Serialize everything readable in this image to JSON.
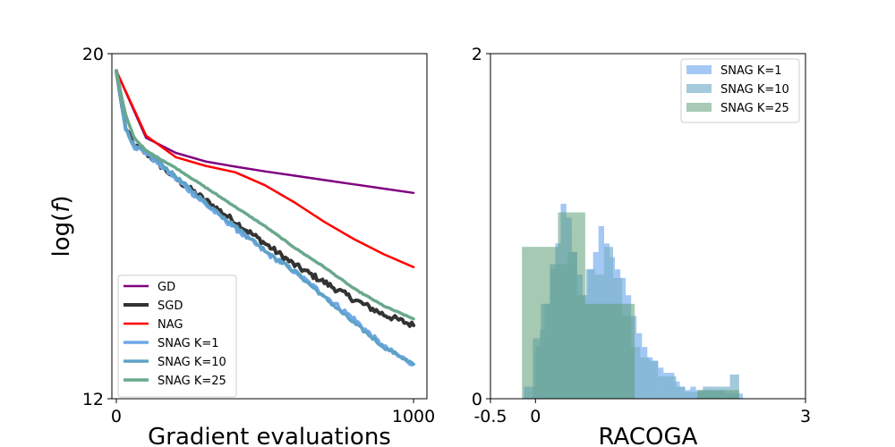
{
  "chart_data": [
    {
      "type": "line",
      "ylabel": "log(f)",
      "ylabel_prefix": "log(",
      "ylabel_var": "f",
      "ylabel_suffix": ")",
      "xlabel": "Gradient evaluations",
      "xlim": [
        -15,
        1045
      ],
      "ylim": [
        12,
        20
      ],
      "xticks": [
        {
          "value": 0,
          "label": "0"
        },
        {
          "value": 1000,
          "label": "1000"
        }
      ],
      "yticks": [
        {
          "value": 12,
          "label": "12"
        },
        {
          "value": 20,
          "label": "20"
        }
      ],
      "legend_position": "lower-left",
      "series": [
        {
          "name": "GD",
          "color": "#800080",
          "width": 2.5,
          "noise": 0,
          "points": [
            [
              0,
              19.6
            ],
            [
              100,
              18.05
            ],
            [
              200,
              17.7
            ],
            [
              300,
              17.5
            ],
            [
              400,
              17.38
            ],
            [
              500,
              17.27
            ],
            [
              600,
              17.17
            ],
            [
              700,
              17.07
            ],
            [
              800,
              16.97
            ],
            [
              900,
              16.87
            ],
            [
              1000,
              16.77
            ]
          ]
        },
        {
          "name": "SGD",
          "color": "#333333",
          "width": 4,
          "noise": 0.07,
          "points": [
            [
              0,
              19.6
            ],
            [
              30,
              18.3
            ],
            [
              60,
              17.85
            ],
            [
              100,
              17.7
            ],
            [
              150,
              17.4
            ],
            [
              200,
              17.1
            ],
            [
              250,
              16.85
            ],
            [
              300,
              16.6
            ],
            [
              400,
              16.1
            ],
            [
              500,
              15.6
            ],
            [
              600,
              15.1
            ],
            [
              700,
              14.7
            ],
            [
              800,
              14.3
            ],
            [
              900,
              13.95
            ],
            [
              1000,
              13.7
            ]
          ]
        },
        {
          "name": "NAG",
          "color": "#ff0000",
          "width": 2.5,
          "noise": 0,
          "points": [
            [
              0,
              19.6
            ],
            [
              100,
              18.1
            ],
            [
              200,
              17.6
            ],
            [
              300,
              17.4
            ],
            [
              400,
              17.25
            ],
            [
              500,
              16.95
            ],
            [
              600,
              16.55
            ],
            [
              700,
              16.1
            ],
            [
              800,
              15.7
            ],
            [
              900,
              15.35
            ],
            [
              1000,
              15.05
            ]
          ]
        },
        {
          "name": "SNAG K=1",
          "color": "#70a8e8",
          "width": 3.5,
          "noise": 0.06,
          "points": [
            [
              0,
              19.6
            ],
            [
              30,
              18.3
            ],
            [
              60,
              17.85
            ],
            [
              100,
              17.7
            ],
            [
              150,
              17.4
            ],
            [
              200,
              17.1
            ],
            [
              250,
              16.8
            ],
            [
              300,
              16.5
            ],
            [
              400,
              15.95
            ],
            [
              500,
              15.4
            ],
            [
              600,
              14.95
            ],
            [
              700,
              14.4
            ],
            [
              800,
              13.85
            ],
            [
              900,
              13.2
            ],
            [
              1000,
              12.8
            ]
          ]
        },
        {
          "name": "SNAG K=10",
          "color": "#5fa2c8",
          "width": 3.5,
          "noise": 0.04,
          "points": [
            [
              0,
              19.6
            ],
            [
              30,
              18.3
            ],
            [
              60,
              17.85
            ],
            [
              100,
              17.7
            ],
            [
              150,
              17.45
            ],
            [
              200,
              17.15
            ],
            [
              250,
              16.85
            ],
            [
              300,
              16.55
            ],
            [
              400,
              16.0
            ],
            [
              500,
              15.45
            ],
            [
              600,
              14.95
            ],
            [
              700,
              14.35
            ],
            [
              800,
              13.75
            ],
            [
              900,
              13.2
            ],
            [
              1000,
              12.8
            ]
          ]
        },
        {
          "name": "SNAG K=25",
          "color": "#6aa88c",
          "width": 3.5,
          "noise": 0.01,
          "points": [
            [
              0,
              19.6
            ],
            [
              30,
              18.6
            ],
            [
              60,
              18.05
            ],
            [
              100,
              17.75
            ],
            [
              150,
              17.55
            ],
            [
              200,
              17.35
            ],
            [
              300,
              16.9
            ],
            [
              400,
              16.45
            ],
            [
              500,
              16.0
            ],
            [
              600,
              15.5
            ],
            [
              700,
              15.05
            ],
            [
              800,
              14.55
            ],
            [
              900,
              14.15
            ],
            [
              1000,
              13.85
            ]
          ]
        }
      ]
    },
    {
      "type": "histogram",
      "xlabel": "RACOGA",
      "xlim": [
        -0.5,
        3
      ],
      "ylim": [
        0,
        2
      ],
      "xticks": [
        {
          "value": -0.5,
          "label": "-0.5"
        },
        {
          "value": 0,
          "label": "0"
        },
        {
          "value": 3,
          "label": "3"
        }
      ],
      "yticks": [
        {
          "value": 0,
          "label": "0"
        },
        {
          "value": 2,
          "label": "2"
        }
      ],
      "legend_position": "top-right",
      "series": [
        {
          "name": "SNAG K=1",
          "color": "#a4c8f5",
          "alpha": 1,
          "bins": [
            [
              -0.13,
              -0.08,
              0.07
            ],
            [
              -0.08,
              0.0,
              0.07
            ],
            [
              0.0,
              0.05,
              0.3
            ],
            [
              0.05,
              0.1,
              0.4
            ],
            [
              0.1,
              0.16,
              0.55
            ],
            [
              0.16,
              0.22,
              0.75
            ],
            [
              0.22,
              0.28,
              0.9
            ],
            [
              0.28,
              0.34,
              1.13
            ],
            [
              0.34,
              0.4,
              1.05
            ],
            [
              0.4,
              0.46,
              0.85
            ],
            [
              0.46,
              0.52,
              0.72
            ],
            [
              0.52,
              0.58,
              0.6
            ],
            [
              0.58,
              0.64,
              0.75
            ],
            [
              0.64,
              0.7,
              0.85
            ],
            [
              0.7,
              0.76,
              1.0
            ],
            [
              0.76,
              0.82,
              0.9
            ],
            [
              0.82,
              0.88,
              0.82
            ],
            [
              0.88,
              0.94,
              0.75
            ],
            [
              0.94,
              1.0,
              0.7
            ],
            [
              1.0,
              1.06,
              0.6
            ],
            [
              1.06,
              1.12,
              0.48
            ],
            [
              1.12,
              1.18,
              0.38
            ],
            [
              1.18,
              1.24,
              0.3
            ],
            [
              1.24,
              1.3,
              0.24
            ],
            [
              1.3,
              1.36,
              0.22
            ],
            [
              1.36,
              1.42,
              0.18
            ],
            [
              1.42,
              1.48,
              0.15
            ],
            [
              1.48,
              1.54,
              0.15
            ],
            [
              1.54,
              1.6,
              0.1
            ],
            [
              1.6,
              1.66,
              0.07
            ],
            [
              1.66,
              1.72,
              0.05
            ],
            [
              1.72,
              1.78,
              0.07
            ],
            [
              1.78,
              1.86,
              0.05
            ],
            [
              1.86,
              2.1,
              0.05
            ],
            [
              2.1,
              2.3,
              0.03
            ]
          ]
        },
        {
          "name": "SNAG K=10",
          "color": "#7eb3cd",
          "alpha": 0.7,
          "bins": [
            [
              -0.03,
              0.06,
              0.35
            ],
            [
              0.06,
              0.16,
              0.55
            ],
            [
              0.16,
              0.26,
              0.78
            ],
            [
              0.26,
              0.36,
              0.78
            ],
            [
              0.36,
              0.46,
              0.85
            ],
            [
              0.46,
              0.56,
              0.6
            ],
            [
              0.56,
              0.66,
              0.75
            ],
            [
              0.66,
              0.76,
              0.72
            ],
            [
              0.76,
              0.86,
              0.88
            ],
            [
              0.86,
              0.96,
              0.7
            ],
            [
              0.96,
              1.06,
              0.48
            ],
            [
              1.06,
              1.16,
              0.3
            ],
            [
              1.16,
              1.26,
              0.24
            ],
            [
              1.26,
              1.36,
              0.22
            ],
            [
              1.36,
              1.46,
              0.13
            ],
            [
              1.46,
              1.56,
              0.13
            ],
            [
              1.56,
              1.66,
              0.07
            ],
            [
              1.66,
              1.76,
              0.04
            ],
            [
              1.76,
              1.86,
              0.04
            ],
            [
              1.86,
              2.16,
              0.07
            ],
            [
              2.16,
              2.26,
              0.14
            ]
          ]
        },
        {
          "name": "SNAG K=25",
          "color": "#5e9e78",
          "alpha": 0.55,
          "bins": [
            [
              -0.15,
              0.25,
              0.88
            ],
            [
              0.25,
              0.55,
              1.08
            ],
            [
              0.55,
              1.1,
              0.55
            ],
            [
              1.1,
              1.8,
              0.0
            ],
            [
              1.8,
              2.1,
              0.05
            ],
            [
              2.1,
              2.26,
              0.05
            ]
          ]
        }
      ]
    }
  ]
}
